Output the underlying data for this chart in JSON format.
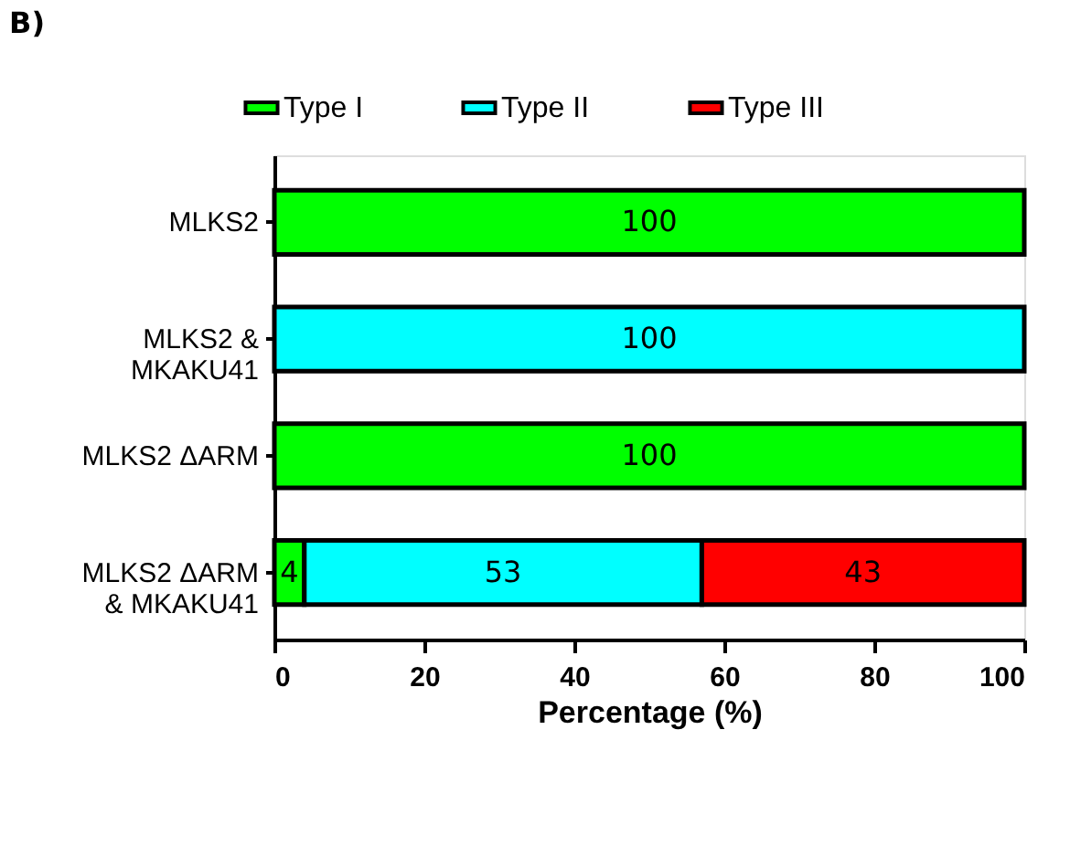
{
  "chart_data": {
    "type": "bar",
    "orientation": "horizontal",
    "stacked": true,
    "title": "B)",
    "categories": [
      "MLKS2",
      "MLKS2 &\nMKAKU41",
      "MLKS2 ΔARM",
      "MLKS2 ΔARM\n& MKAKU41"
    ],
    "series": [
      {
        "name": "Type I",
        "color": "#00ff00",
        "values": [
          100,
          null,
          100,
          4
        ]
      },
      {
        "name": "Type II",
        "color": "#00ffff",
        "values": [
          null,
          100,
          null,
          53
        ]
      },
      {
        "name": "Type III",
        "color": "#ff0000",
        "values": [
          null,
          null,
          null,
          43
        ]
      }
    ],
    "xlabel": "Percentage (%)",
    "xlim": [
      0,
      100
    ],
    "xticks": [
      0,
      20,
      40,
      60,
      80,
      100
    ],
    "data_labels": true,
    "grid": false,
    "legend": "top"
  }
}
